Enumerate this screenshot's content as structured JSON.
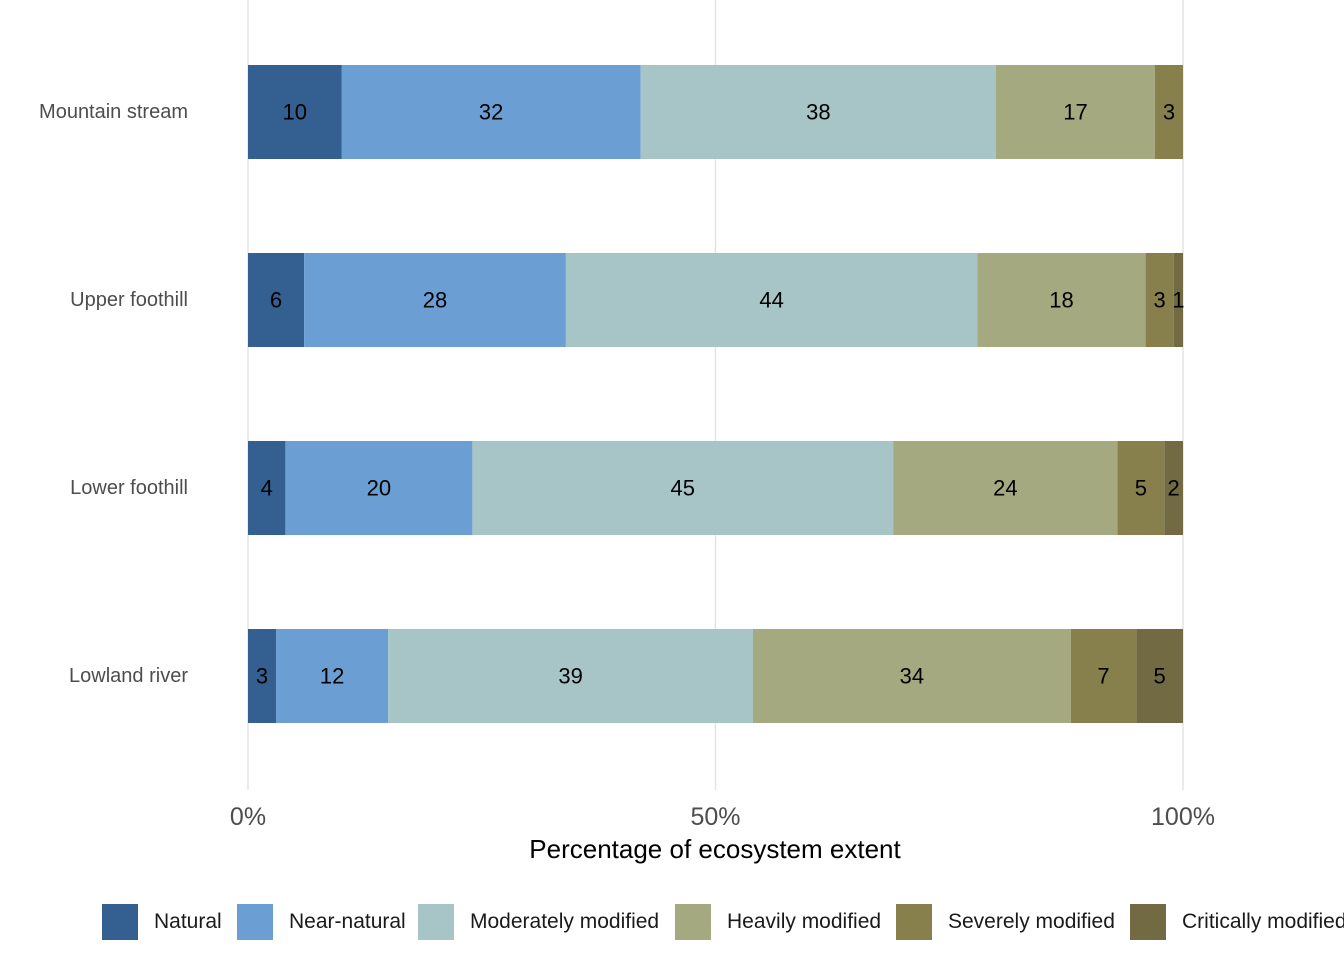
{
  "chart_data": {
    "type": "bar",
    "orientation": "horizontal",
    "stacked": true,
    "title": "",
    "xlabel": "Percentage of ecosystem extent",
    "ylabel": "",
    "xlim": [
      0,
      100
    ],
    "x_ticks": [
      0,
      50,
      100
    ],
    "x_tick_labels": [
      "0%",
      "50%",
      "100%"
    ],
    "grid": "vertical major",
    "legend_position": "bottom",
    "categories": [
      "Mountain stream",
      "Upper foothill",
      "Lower foothill",
      "Lowland river"
    ],
    "series": [
      {
        "name": "Natural",
        "color": "#335f91",
        "values": [
          10,
          6,
          4,
          3
        ]
      },
      {
        "name": "Near-natural",
        "color": "#6b9ed3",
        "values": [
          32,
          28,
          20,
          12
        ]
      },
      {
        "name": "Moderately modified",
        "color": "#a7c4c6",
        "values": [
          38,
          44,
          45,
          39
        ]
      },
      {
        "name": "Heavily modified",
        "color": "#a5a97f",
        "values": [
          17,
          18,
          24,
          34
        ]
      },
      {
        "name": "Severely modified",
        "color": "#87804c",
        "values": [
          3,
          3,
          5,
          7
        ]
      },
      {
        "name": "Critically modified",
        "color": "#726a43",
        "values": [
          0,
          1,
          2,
          5
        ]
      }
    ]
  }
}
